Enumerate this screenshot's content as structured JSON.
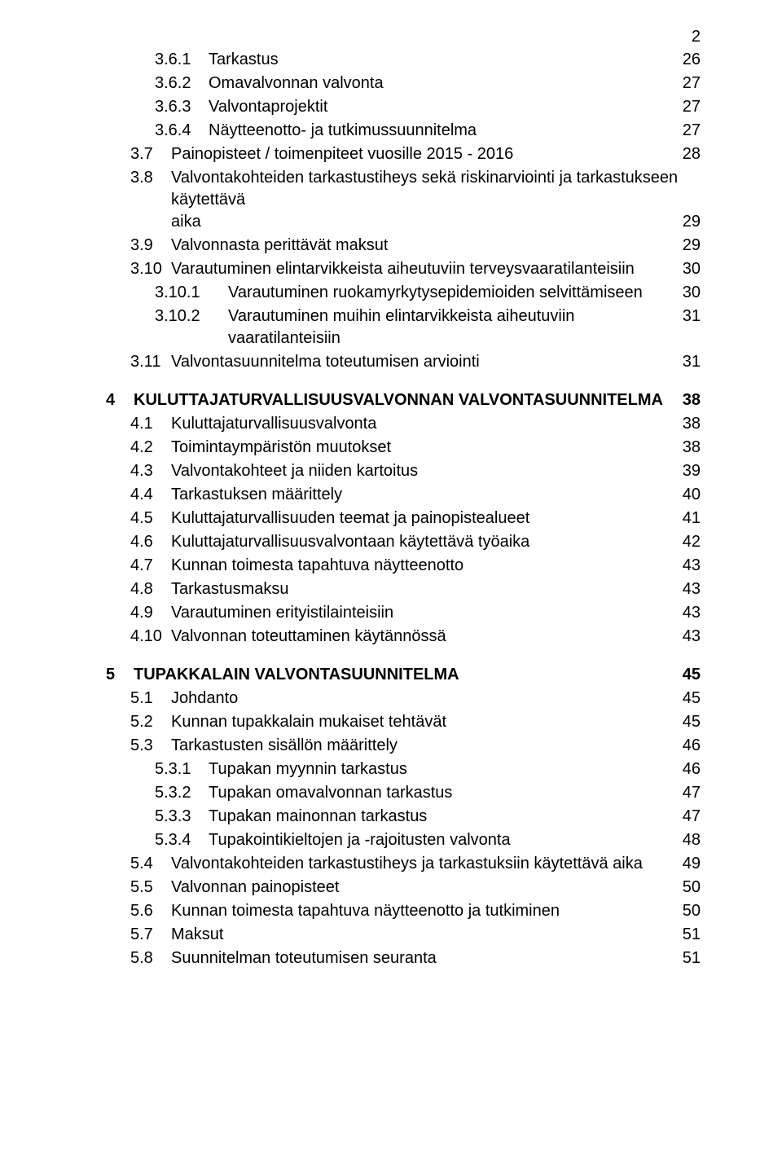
{
  "page_number": "2",
  "entries": [
    {
      "num": "3.6.1",
      "label": "Tarkastus",
      "page": "26",
      "indent": 2,
      "bold": false
    },
    {
      "num": "3.6.2",
      "label": "Omavalvonnan valvonta",
      "page": "27",
      "indent": 2,
      "bold": false
    },
    {
      "num": "3.6.3",
      "label": "Valvontaprojektit",
      "page": "27",
      "indent": 2,
      "bold": false
    },
    {
      "num": "3.6.4",
      "label": "Näytteenotto- ja tutkimussuunnitelma",
      "page": "27",
      "indent": 2,
      "bold": false
    },
    {
      "num": "3.7",
      "label": "Painopisteet / toimenpiteet vuosille 2015 - 2016",
      "page": "28",
      "indent": 1,
      "bold": false
    },
    {
      "num": "3.8",
      "label_top": "Valvontakohteiden tarkastustiheys sekä riskinarviointi ja tarkastukseen käytettävä",
      "label_bottom": "aika",
      "page": "29",
      "indent": 1,
      "bold": false,
      "wrap": true
    },
    {
      "num": "3.9",
      "label": "Valvonnasta perittävät maksut",
      "page": "29",
      "indent": 1,
      "bold": false
    },
    {
      "num": "3.10",
      "label": "Varautuminen elintarvikkeista aiheutuviin terveysvaaratilanteisiin",
      "page": "30",
      "indent": 1,
      "bold": false
    },
    {
      "num": "3.10.1",
      "label": "Varautuminen ruokamyrkytysepidemioiden selvittämiseen",
      "page": "30",
      "indent": 2,
      "bold": false,
      "wide_num": true
    },
    {
      "num": "3.10.2",
      "label": "Varautuminen muihin elintarvikkeista aiheutuviin vaaratilanteisiin",
      "page": "31",
      "indent": 2,
      "bold": false,
      "wide_num": true
    },
    {
      "num": "3.11",
      "label": "Valvontasuunnitelma toteutumisen arviointi",
      "page": "31",
      "indent": 1,
      "bold": false
    },
    {
      "gap": true
    },
    {
      "num": "4",
      "label": "KULUTTAJATURVALLISUUSVALVONNAN VALVONTASUUNNITELMA",
      "page": "38",
      "indent": 0,
      "bold": true
    },
    {
      "num": "4.1",
      "label": "Kuluttajaturvallisuusvalvonta",
      "page": "38",
      "indent": 1,
      "bold": false
    },
    {
      "num": "4.2",
      "label": "Toimintaympäristön muutokset",
      "page": "38",
      "indent": 1,
      "bold": false
    },
    {
      "num": "4.3",
      "label": "Valvontakohteet ja niiden kartoitus",
      "page": "39",
      "indent": 1,
      "bold": false
    },
    {
      "num": "4.4",
      "label": "Tarkastuksen määrittely",
      "page": "40",
      "indent": 1,
      "bold": false
    },
    {
      "num": "4.5",
      "label": "Kuluttajaturvallisuuden teemat ja painopistealueet",
      "page": "41",
      "indent": 1,
      "bold": false
    },
    {
      "num": "4.6",
      "label": "Kuluttajaturvallisuusvalvontaan käytettävä työaika",
      "page": "42",
      "indent": 1,
      "bold": false
    },
    {
      "num": "4.7",
      "label": "Kunnan toimesta tapahtuva näytteenotto",
      "page": "43",
      "indent": 1,
      "bold": false
    },
    {
      "num": "4.8",
      "label": "Tarkastusmaksu",
      "page": "43",
      "indent": 1,
      "bold": false
    },
    {
      "num": "4.9",
      "label": "Varautuminen erityistilainteisiin",
      "page": "43",
      "indent": 1,
      "bold": false
    },
    {
      "num": "4.10",
      "label": "Valvonnan toteuttaminen käytännössä",
      "page": "43",
      "indent": 1,
      "bold": false
    },
    {
      "gap": true
    },
    {
      "num": "5",
      "label": "TUPAKKALAIN VALVONTASUUNNITELMA",
      "page": "45",
      "indent": 0,
      "bold": true
    },
    {
      "num": "5.1",
      "label": "Johdanto",
      "page": "45",
      "indent": 1,
      "bold": false
    },
    {
      "num": "5.2",
      "label": "Kunnan tupakkalain mukaiset tehtävät",
      "page": "45",
      "indent": 1,
      "bold": false
    },
    {
      "num": "5.3",
      "label": "Tarkastusten sisällön määrittely",
      "page": "46",
      "indent": 1,
      "bold": false
    },
    {
      "num": "5.3.1",
      "label": "Tupakan myynnin tarkastus",
      "page": "46",
      "indent": 2,
      "bold": false
    },
    {
      "num": "5.3.2",
      "label": "Tupakan omavalvonnan tarkastus",
      "page": "47",
      "indent": 2,
      "bold": false
    },
    {
      "num": "5.3.3",
      "label": "Tupakan mainonnan tarkastus",
      "page": "47",
      "indent": 2,
      "bold": false
    },
    {
      "num": "5.3.4",
      "label": "Tupakointikieltojen ja -rajoitusten valvonta",
      "page": "48",
      "indent": 2,
      "bold": false
    },
    {
      "num": "5.4",
      "label": "Valvontakohteiden tarkastustiheys ja tarkastuksiin käytettävä aika",
      "page": "49",
      "indent": 1,
      "bold": false
    },
    {
      "num": "5.5",
      "label": "Valvonnan painopisteet",
      "page": "50",
      "indent": 1,
      "bold": false
    },
    {
      "num": "5.6",
      "label": "Kunnan toimesta tapahtuva näytteenotto ja tutkiminen",
      "page": "50",
      "indent": 1,
      "bold": false
    },
    {
      "num": "5.7",
      "label": "Maksut",
      "page": "51",
      "indent": 1,
      "bold": false
    },
    {
      "num": "5.8",
      "label": "Suunnitelman toteutumisen seuranta",
      "page": "51",
      "indent": 1,
      "bold": false
    }
  ],
  "indent_widths": {
    "0": "34px",
    "1": "50px",
    "2": "66px",
    "wide": "90px"
  },
  "indent_left": {
    "0": "0px",
    "1": "30px",
    "2": "60px"
  }
}
